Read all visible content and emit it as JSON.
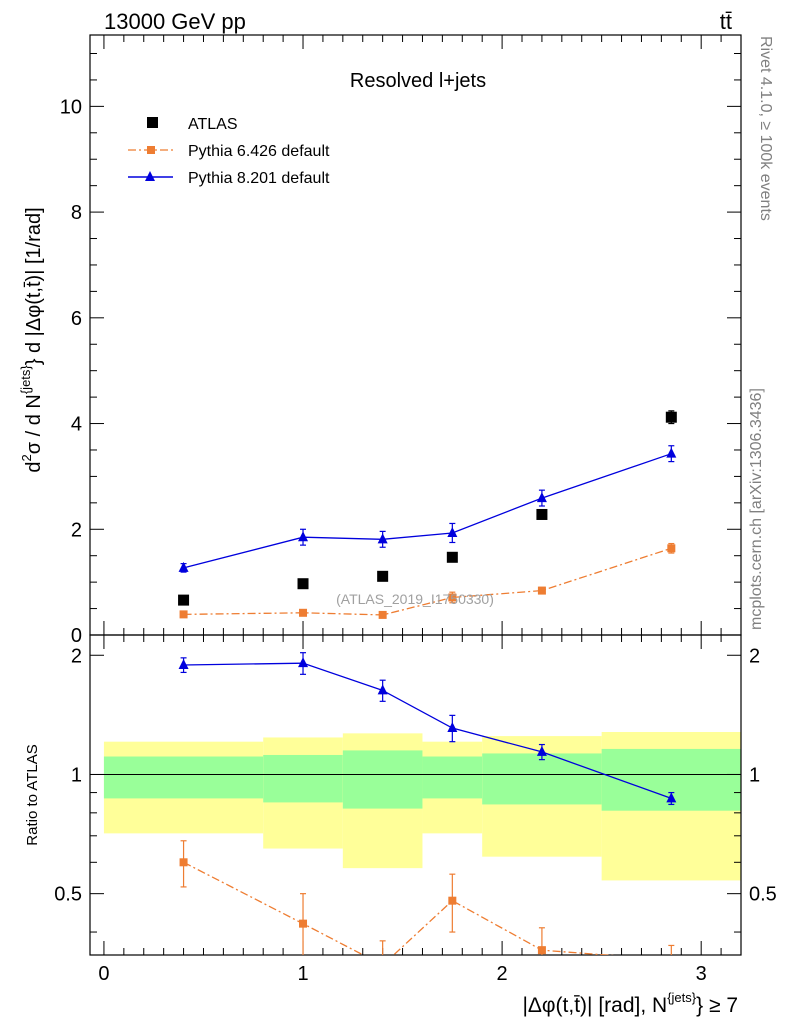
{
  "header": {
    "energy_label": "13000 GeV pp",
    "process_label": "tt̄"
  },
  "side_text": {
    "rivet": "Rivet 4.1.0, ≥ 100k events",
    "mcplots": "mcplots.cern.ch [arXiv:1306.3436]"
  },
  "chart_data": [
    {
      "type": "scatter",
      "panel": "main",
      "title": "Resolved l+jets",
      "watermark": "(ATLAS_2019_I1750330)",
      "ylabel_parts": {
        "d": "d",
        "two": "2",
        "sigma": "σ / d N",
        "jets": "{jets}",
        "rest": "} d |Δφ(t,t̄)| [1/rad]"
      },
      "xlim": [
        -0.07,
        3.2
      ],
      "ylim": [
        0,
        11.35
      ],
      "yticks": [
        0,
        2,
        4,
        6,
        8,
        10
      ],
      "ytick_labels": [
        "0",
        "2",
        "4",
        "6",
        "8",
        "10"
      ],
      "series": [
        {
          "name": "ATLAS",
          "color": "#000000",
          "marker": "square",
          "x": [
            0.4,
            1.0,
            1.4,
            1.75,
            2.2,
            2.85
          ],
          "y": [
            0.66,
            0.97,
            1.11,
            1.47,
            2.28,
            4.12
          ],
          "err": [
            0.04,
            0.05,
            0.05,
            0.06,
            0.08,
            0.12
          ]
        },
        {
          "name": "Pythia 6.426 default",
          "color": "#ee7d32",
          "marker": "square",
          "line": "dashdot",
          "x": [
            0.4,
            1.0,
            1.4,
            1.75,
            2.2,
            2.85
          ],
          "y": [
            0.39,
            0.42,
            0.38,
            0.71,
            0.84,
            1.64
          ],
          "err": [
            0.05,
            0.05,
            0.05,
            0.1,
            0.06,
            0.09
          ]
        },
        {
          "name": "Pythia 8.201 default",
          "color": "#0000dd",
          "marker": "triangle",
          "line": "solid",
          "x": [
            0.4,
            1.0,
            1.4,
            1.75,
            2.2,
            2.85
          ],
          "y": [
            1.27,
            1.85,
            1.81,
            1.93,
            2.59,
            3.43
          ],
          "err": [
            0.08,
            0.15,
            0.15,
            0.18,
            0.15,
            0.15
          ]
        }
      ]
    },
    {
      "type": "scatter",
      "panel": "ratio",
      "ylabel": "Ratio to ATLAS",
      "xlabel_parts": {
        "main": "|Δφ(t,t̄)| [rad], N",
        "jets": "{jets}",
        "tail": "} ≥ 7"
      },
      "xlim": [
        -0.07,
        3.2
      ],
      "ylim": [
        0.35,
        2.25
      ],
      "xticks": [
        0,
        1,
        2,
        3
      ],
      "xtick_labels": [
        "0",
        "1",
        "2",
        "3"
      ],
      "yticks": [
        0.5,
        1,
        2
      ],
      "ytick_labels": [
        "0.5",
        "1",
        "2"
      ],
      "bands": {
        "bin_edges": [
          0.0,
          0.8,
          1.2,
          1.6,
          1.9,
          2.5,
          3.2
        ],
        "stat_lo": [
          0.87,
          0.85,
          0.82,
          0.87,
          0.84,
          0.81
        ],
        "stat_hi": [
          1.11,
          1.12,
          1.15,
          1.11,
          1.13,
          1.16
        ],
        "total_lo": [
          0.71,
          0.65,
          0.58,
          0.71,
          0.62,
          0.54
        ],
        "total_hi": [
          1.21,
          1.24,
          1.27,
          1.21,
          1.25,
          1.28
        ],
        "stat_color": "#99ff99",
        "total_color": "#ffff99"
      },
      "series": [
        {
          "name": "Pythia 6.426 default",
          "color": "#ee7d32",
          "marker": "square",
          "line": "dashdot",
          "x": [
            0.4,
            1.0,
            1.4,
            1.75,
            2.2,
            2.85
          ],
          "y": [
            0.6,
            0.42,
            0.33,
            0.48,
            0.36,
            0.34
          ],
          "err": [
            0.08,
            0.08,
            0.05,
            0.08,
            0.05,
            0.03
          ]
        },
        {
          "name": "Pythia 8.201 default",
          "color": "#0000dd",
          "marker": "triangle",
          "line": "solid",
          "x": [
            0.4,
            1.0,
            1.4,
            1.75,
            2.2,
            2.85
          ],
          "y": [
            1.89,
            1.91,
            1.63,
            1.31,
            1.14,
            0.87
          ],
          "err": [
            0.08,
            0.12,
            0.1,
            0.1,
            0.05,
            0.03
          ]
        }
      ]
    }
  ]
}
